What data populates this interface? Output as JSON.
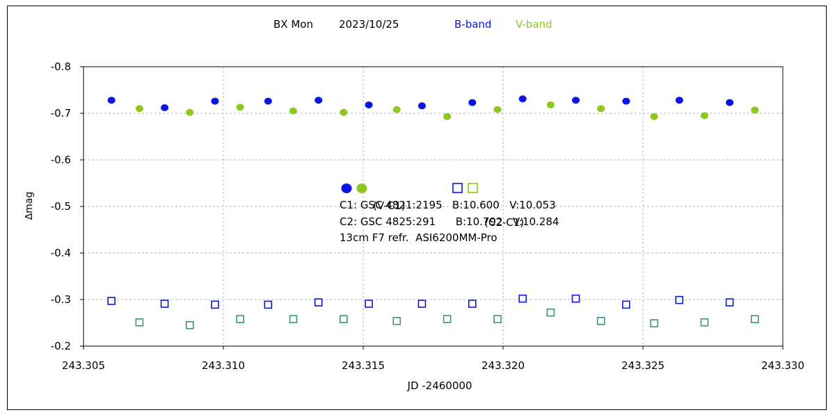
{
  "chart_data": {
    "type": "scatter",
    "title": {
      "object": "BX Mon",
      "date": "2023/10/25",
      "band_b": "B-band",
      "band_v": "V-band"
    },
    "xlabel": "JD -2460000",
    "ylabel": "∆mag",
    "xlim": [
      243.305,
      243.33
    ],
    "ylim": [
      -0.8,
      -0.2
    ],
    "y_inverted": true,
    "x_ticks": [
      "243.305",
      "243.310",
      "243.315",
      "243.320",
      "243.325",
      "243.330"
    ],
    "y_ticks": [
      "-0.8",
      "-0.7",
      "-0.6",
      "-0.5",
      "-0.4",
      "-0.3",
      "-0.2"
    ],
    "grid": true,
    "colors": {
      "b_band": "#0a14e6",
      "v_band": "#8cc81e",
      "check_v": "#3c9670"
    },
    "legend": {
      "vc1": "(V-C1)",
      "c2c1": "(C2-C1)"
    },
    "annotations": [
      "C1: GSC 4821:2195   B:10.600   V:10.053",
      "C2: GSC 4825:291      B:10.792   V:10.284",
      "13cm F7 refr.  ASI6200MM-Pro"
    ],
    "series": [
      {
        "name": "(V-C1) B-band",
        "marker": "filled-circle",
        "x": [
          243.306,
          243.3079,
          243.3097,
          243.3116,
          243.3134,
          243.3152,
          243.3171,
          243.3189,
          243.3207,
          243.3226,
          243.3244,
          243.3263,
          243.3281
        ],
        "y": [
          -0.728,
          -0.712,
          -0.726,
          -0.726,
          -0.728,
          -0.718,
          -0.716,
          -0.723,
          -0.731,
          -0.728,
          -0.726,
          -0.728,
          -0.723
        ]
      },
      {
        "name": "(V-C1) V-band",
        "marker": "filled-circle",
        "x": [
          243.307,
          243.3088,
          243.3106,
          243.3125,
          243.3143,
          243.3162,
          243.318,
          243.3198,
          243.3217,
          243.3235,
          243.3254,
          243.3272,
          243.329
        ],
        "y": [
          -0.71,
          -0.702,
          -0.713,
          -0.705,
          -0.702,
          -0.708,
          -0.693,
          -0.708,
          -0.718,
          -0.71,
          -0.693,
          -0.695,
          -0.707
        ]
      },
      {
        "name": "(C2-C1) B-band",
        "marker": "open-square",
        "x": [
          243.306,
          243.3079,
          243.3097,
          243.3116,
          243.3134,
          243.3152,
          243.3171,
          243.3189,
          243.3207,
          243.3226,
          243.3244,
          243.3263,
          243.3281
        ],
        "y": [
          -0.297,
          -0.291,
          -0.289,
          -0.289,
          -0.294,
          -0.291,
          -0.291,
          -0.291,
          -0.302,
          -0.302,
          -0.289,
          -0.299,
          -0.294
        ]
      },
      {
        "name": "(C2-C1) V-band",
        "marker": "open-square",
        "x": [
          243.307,
          243.3088,
          243.3106,
          243.3125,
          243.3143,
          243.3162,
          243.318,
          243.3198,
          243.3217,
          243.3235,
          243.3254,
          243.3272,
          243.329
        ],
        "y": [
          -0.251,
          -0.245,
          -0.258,
          -0.258,
          -0.258,
          -0.254,
          -0.258,
          -0.258,
          -0.272,
          -0.254,
          -0.249,
          -0.251,
          -0.258
        ]
      }
    ]
  }
}
